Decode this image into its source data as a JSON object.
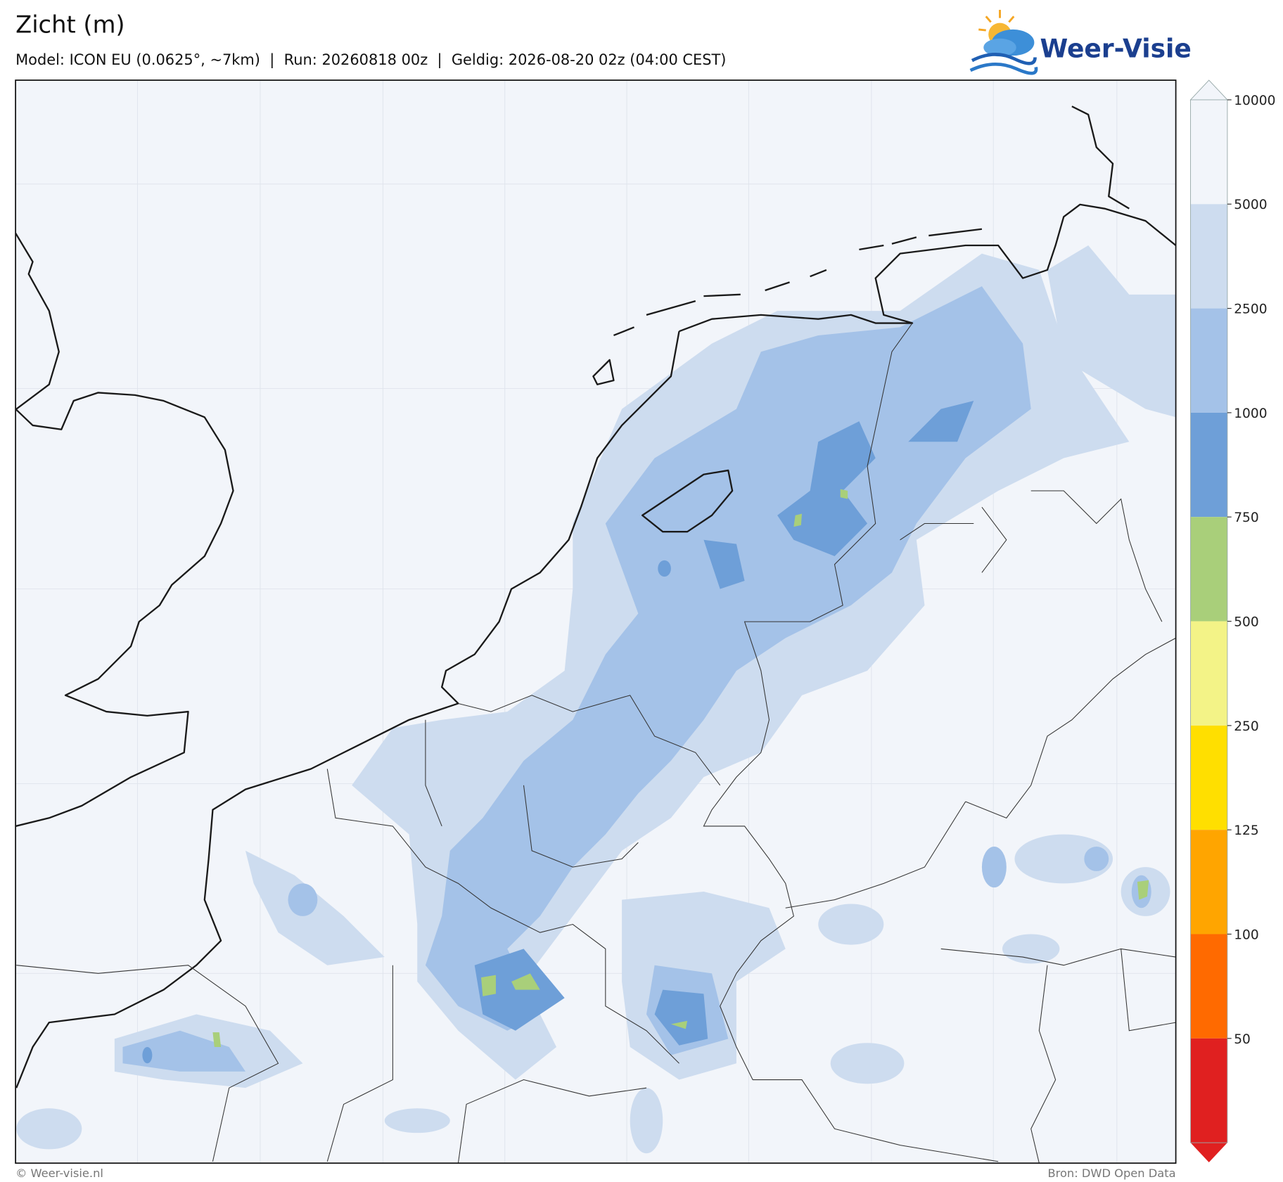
{
  "header": {
    "title": "Zicht (m)",
    "subtitle": "Model: ICON EU (0.0625°, ~7km)  |  Run: 20260818 00z  |  Geldig: 2026-08-20 02z (04:00 CEST)"
  },
  "logo": {
    "text": "Weer-Visie"
  },
  "colorbar": {
    "ticks": [
      10000,
      5000,
      2500,
      1000,
      750,
      500,
      250,
      125,
      100,
      50
    ],
    "colors": [
      "#f2f5fa",
      "#cddcef",
      "#a4c2e8",
      "#6e9fd8",
      "#a9cf7a",
      "#f3f387",
      "#ffdf00",
      "#ffa500",
      "#ff6a00",
      "#e02020"
    ]
  },
  "footer": {
    "credit": "© Weer-visie.nl",
    "source": "Bron: DWD Open Data"
  }
}
